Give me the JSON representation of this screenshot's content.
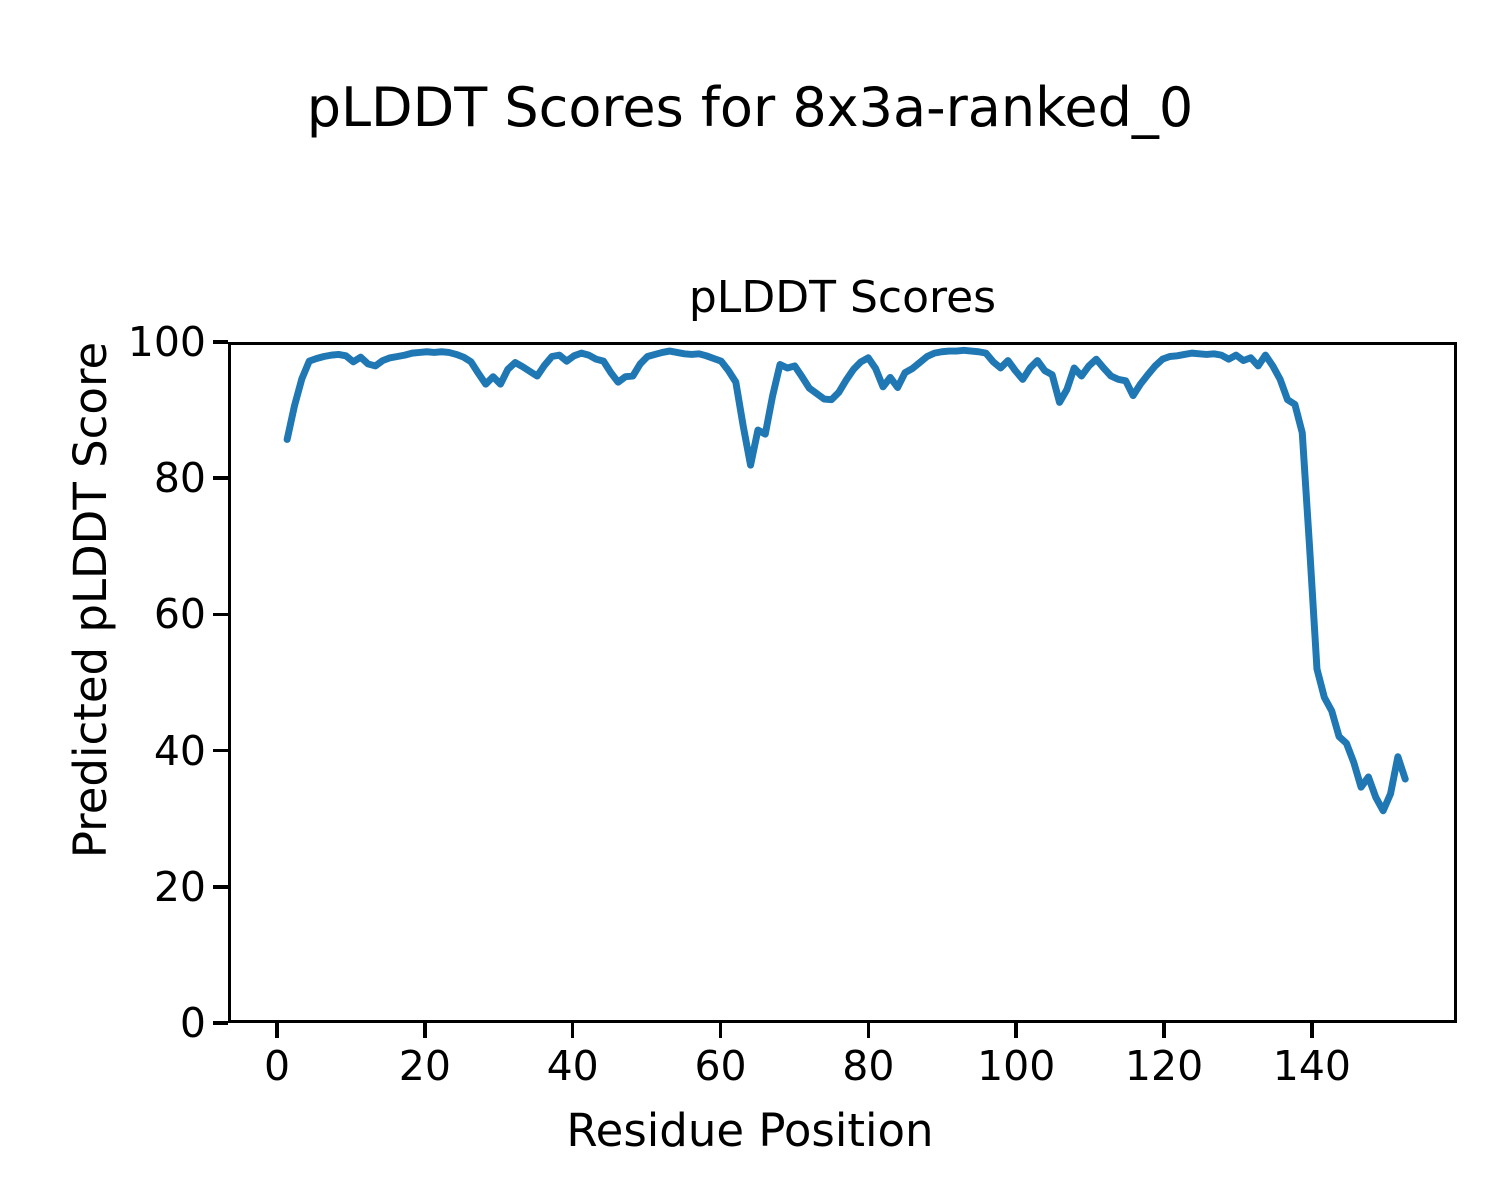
{
  "figure": {
    "suptitle": "pLDDT Scores for 8x3a-ranked_0"
  },
  "chart_data": {
    "type": "line",
    "title": "pLDDT Scores",
    "xlabel": "Residue Position",
    "ylabel": "Predicted pLDDT Score",
    "xlim": [
      -6.63,
      159.63
    ],
    "ylim": [
      0,
      100
    ],
    "x_ticks": [
      0,
      20,
      40,
      60,
      80,
      100,
      120,
      140
    ],
    "y_ticks": [
      0,
      20,
      40,
      60,
      80,
      100
    ],
    "grid": false,
    "legend": "none",
    "line_color": "#1f77b4",
    "series": [
      {
        "name": "pLDDT per residue",
        "x_start": 1,
        "values": [
          86.0,
          91.0,
          95.0,
          97.6,
          98.0,
          98.3,
          98.5,
          98.6,
          98.4,
          97.5,
          98.2,
          97.2,
          96.9,
          97.7,
          98.1,
          98.3,
          98.5,
          98.8,
          98.9,
          99.0,
          98.9,
          99.0,
          98.9,
          98.6,
          98.2,
          97.5,
          95.8,
          94.2,
          95.3,
          94.2,
          96.4,
          97.4,
          96.8,
          96.1,
          95.4,
          97.0,
          98.3,
          98.5,
          97.6,
          98.4,
          98.8,
          98.5,
          97.9,
          97.6,
          95.9,
          94.5,
          95.3,
          95.4,
          97.2,
          98.3,
          98.6,
          98.9,
          99.1,
          98.9,
          98.7,
          98.6,
          98.7,
          98.4,
          98.0,
          97.6,
          96.2,
          94.5,
          88.0,
          82.2,
          87.4,
          86.8,
          92.5,
          97.1,
          96.6,
          96.9,
          95.3,
          93.6,
          92.8,
          92.0,
          91.9,
          93.0,
          94.8,
          96.4,
          97.5,
          98.1,
          96.5,
          93.8,
          95.2,
          93.7,
          95.9,
          96.5,
          97.4,
          98.3,
          98.8,
          99.0,
          99.1,
          99.1,
          99.2,
          99.1,
          99.0,
          98.8,
          97.5,
          96.6,
          97.7,
          96.2,
          94.9,
          96.6,
          97.7,
          96.2,
          95.6,
          91.5,
          93.4,
          96.6,
          95.4,
          96.9,
          97.9,
          96.6,
          95.4,
          94.9,
          94.7,
          92.5,
          94.2,
          95.6,
          96.9,
          97.9,
          98.3,
          98.4,
          98.6,
          98.8,
          98.7,
          98.6,
          98.7,
          98.5,
          97.9,
          98.5,
          97.7,
          98.1,
          96.9,
          98.5,
          96.9,
          94.9,
          91.9,
          91.2,
          87.0,
          70.0,
          52.0,
          47.8,
          45.8,
          42.0,
          41.0,
          38.2,
          34.5,
          36.0,
          33.0,
          31.0,
          33.5,
          39.0,
          35.7
        ]
      }
    ]
  }
}
